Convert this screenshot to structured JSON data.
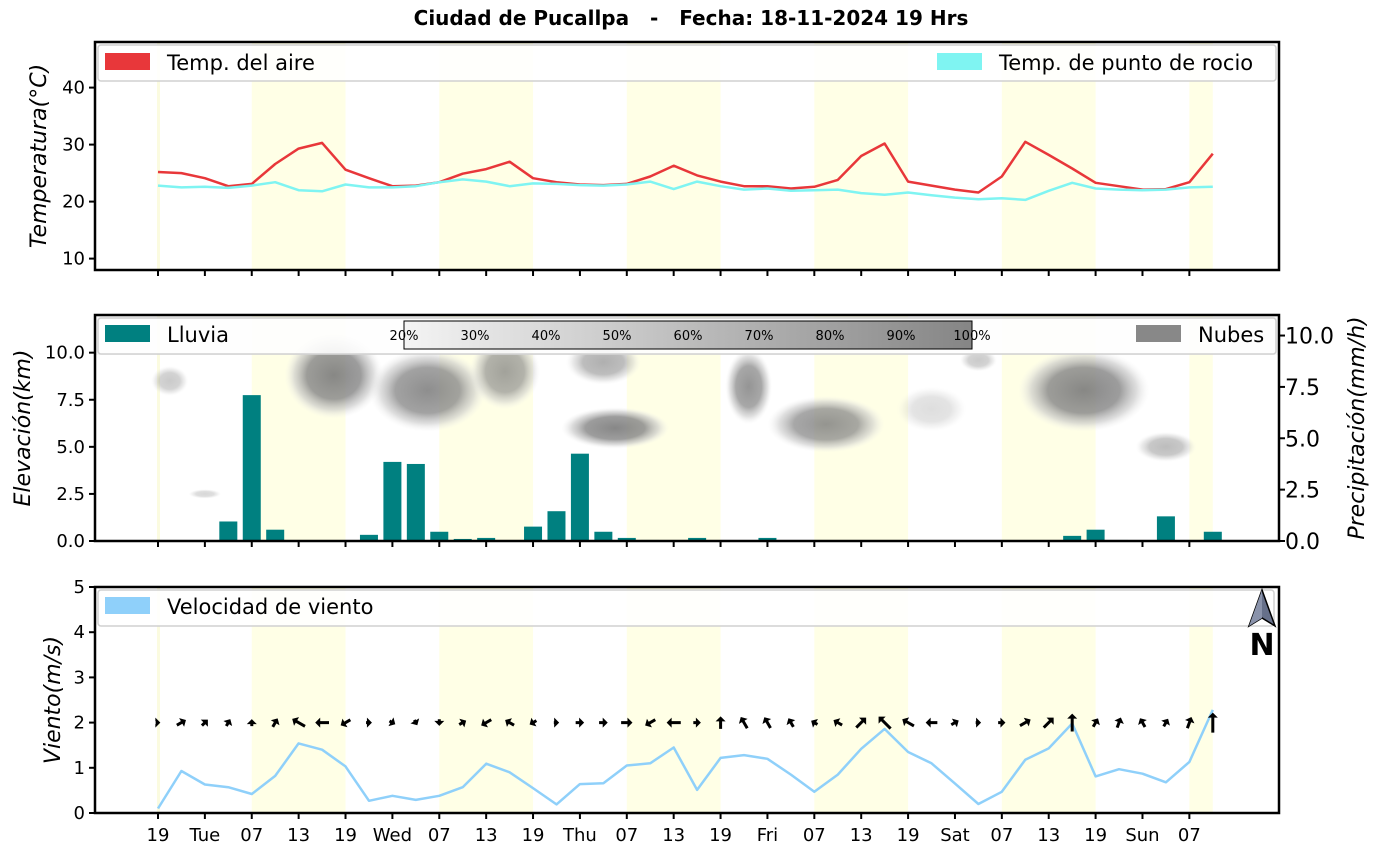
{
  "title": "Ciudad de Pucallpa   -   Fecha: 18-11-2024 19 Hrs",
  "x_tick_labels": [
    "19",
    "Tue",
    "07",
    "13",
    "19",
    "Wed",
    "07",
    "13",
    "19",
    "Thu",
    "07",
    "13",
    "19",
    "Fri",
    "07",
    "13",
    "19",
    "Sat",
    "07",
    "13",
    "19",
    "Sun",
    "07"
  ],
  "colors": {
    "air_temp": "#e8373a",
    "dew_point": "#7ff4f2",
    "rain": "#008080",
    "clouds": "#888888",
    "wind_speed": "#8fd0fa",
    "daylight": "#ffffe6"
  },
  "north_label": "N",
  "chart_data": [
    {
      "type": "line",
      "ylabel": "Temperatura(°C)",
      "ylim": [
        8,
        48
      ],
      "yticks": [
        10,
        20,
        30,
        40
      ],
      "legend": {
        "placement": "top",
        "left": "Temp. del aire",
        "right": "Temp. de punto de rocio"
      },
      "x_step_hours": 3,
      "series": [
        {
          "name": "Temp. del aire",
          "values": [
            25.2,
            25.0,
            24.1,
            22.7,
            23.1,
            26.6,
            29.3,
            30.3,
            25.6,
            24.1,
            22.7,
            22.8,
            23.4,
            24.9,
            25.7,
            27.0,
            24.1,
            23.4,
            23.0,
            22.9,
            23.1,
            24.4,
            26.3,
            24.6,
            23.5,
            22.7,
            22.7,
            22.3,
            22.6,
            23.8,
            28.0,
            30.2,
            23.5,
            22.8,
            22.1,
            21.6,
            24.4,
            30.5,
            28.2,
            25.8,
            23.3,
            22.7,
            22.1,
            22.2,
            23.4,
            28.4
          ]
        },
        {
          "name": "Temp. de punto de rocio",
          "values": [
            22.8,
            22.5,
            22.6,
            22.4,
            22.8,
            23.4,
            22.0,
            21.8,
            23.0,
            22.5,
            22.5,
            22.7,
            23.4,
            23.9,
            23.5,
            22.7,
            23.2,
            23.1,
            22.9,
            22.8,
            23.0,
            23.5,
            22.2,
            23.5,
            22.7,
            22.1,
            22.3,
            21.9,
            22.0,
            22.1,
            21.5,
            21.2,
            21.6,
            21.1,
            20.7,
            20.4,
            20.6,
            20.3,
            21.9,
            23.3,
            22.3,
            22.1,
            22.0,
            22.1,
            22.5,
            22.6
          ]
        }
      ]
    },
    {
      "type": "bar",
      "ylabel": "Elevación(km)",
      "ylim": [
        0,
        12
      ],
      "yticks": [
        0.0,
        2.5,
        5.0,
        7.5,
        10.0
      ],
      "y2label": "Precipitación(mm/h)",
      "y2lim": [
        0,
        11
      ],
      "y2ticks": [
        0.0,
        2.5,
        5.0,
        7.5,
        10.0
      ],
      "legend": {
        "placement": "top",
        "left": "Lluvia",
        "right": "Nubes"
      },
      "colorbar_labels": [
        "20%",
        "30%",
        "40%",
        "50%",
        "60%",
        "70%",
        "80%",
        "90%",
        "100%"
      ],
      "series": [
        {
          "name": "Lluvia",
          "values": [
            0,
            0,
            0,
            0.95,
            7.1,
            0.55,
            0,
            0,
            0,
            0.3,
            3.85,
            3.75,
            0.45,
            0.1,
            0.15,
            0,
            0.7,
            1.45,
            4.25,
            0.45,
            0.15,
            0.05,
            0,
            0.15,
            0,
            0,
            0.15,
            0,
            0,
            0,
            0,
            0,
            0,
            0,
            0,
            0,
            0,
            0,
            0,
            0.25,
            0.55,
            0.05,
            0,
            1.2,
            0,
            0.45
          ]
        }
      ],
      "clouds": [
        {
          "x": 7.5,
          "y": 8.8,
          "rx": 2.1,
          "ry": 2.3,
          "density": 0.9
        },
        {
          "x": 11.5,
          "y": 8.0,
          "rx": 2.5,
          "ry": 2.2,
          "density": 0.85
        },
        {
          "x": 14.8,
          "y": 9.0,
          "rx": 1.5,
          "ry": 2.0,
          "density": 0.7
        },
        {
          "x": 19.5,
          "y": 6.0,
          "rx": 2.3,
          "ry": 1.1,
          "density": 0.9
        },
        {
          "x": 19.0,
          "y": 9.5,
          "rx": 1.6,
          "ry": 1.2,
          "density": 0.6
        },
        {
          "x": 25.2,
          "y": 8.2,
          "rx": 1.0,
          "ry": 2.0,
          "density": 0.8
        },
        {
          "x": 28.5,
          "y": 6.2,
          "rx": 2.5,
          "ry": 1.5,
          "density": 0.8
        },
        {
          "x": 39.5,
          "y": 8.0,
          "rx": 2.8,
          "ry": 2.2,
          "density": 0.9
        },
        {
          "x": 43.0,
          "y": 5.0,
          "rx": 1.3,
          "ry": 0.8,
          "density": 0.5
        },
        {
          "x": 0.5,
          "y": 8.5,
          "rx": 0.8,
          "ry": 0.8,
          "density": 0.4
        },
        {
          "x": 2.0,
          "y": 2.5,
          "rx": 0.7,
          "ry": 0.25,
          "density": 0.3
        },
        {
          "x": 35.0,
          "y": 9.6,
          "rx": 0.8,
          "ry": 0.6,
          "density": 0.4
        },
        {
          "x": 33.0,
          "y": 7.0,
          "rx": 1.5,
          "ry": 1.2,
          "density": 0.25
        }
      ]
    },
    {
      "type": "line",
      "ylabel": "Viento(m/s)",
      "ylim": [
        0,
        5
      ],
      "yticks": [
        0,
        1,
        2,
        3,
        4,
        5
      ],
      "legend": {
        "placement": "top-left",
        "left": "Velocidad de viento"
      },
      "series": [
        {
          "name": "Velocidad de viento",
          "values": [
            0.1,
            0.93,
            0.63,
            0.57,
            0.42,
            0.82,
            1.54,
            1.4,
            1.03,
            0.27,
            0.38,
            0.29,
            0.38,
            0.57,
            1.09,
            0.9,
            0.55,
            0.19,
            0.64,
            0.66,
            1.05,
            1.1,
            1.45,
            0.51,
            1.22,
            1.28,
            1.2,
            0.85,
            0.47,
            0.85,
            1.42,
            1.86,
            1.35,
            1.1,
            0.65,
            0.2,
            0.47,
            1.18,
            1.43,
            1.98,
            0.81,
            0.97,
            0.87,
            0.68,
            1.13,
            2.28
          ]
        }
      ],
      "wind_dir_deg": [
        90,
        60,
        45,
        30,
        0,
        30,
        300,
        270,
        240,
        90,
        120,
        150,
        180,
        60,
        240,
        300,
        240,
        90,
        90,
        90,
        90,
        240,
        270,
        90,
        0,
        330,
        330,
        330,
        300,
        300,
        45,
        315,
        300,
        270,
        60,
        90,
        90,
        60,
        45,
        0,
        30,
        20,
        330,
        30,
        20,
        0
      ]
    }
  ]
}
